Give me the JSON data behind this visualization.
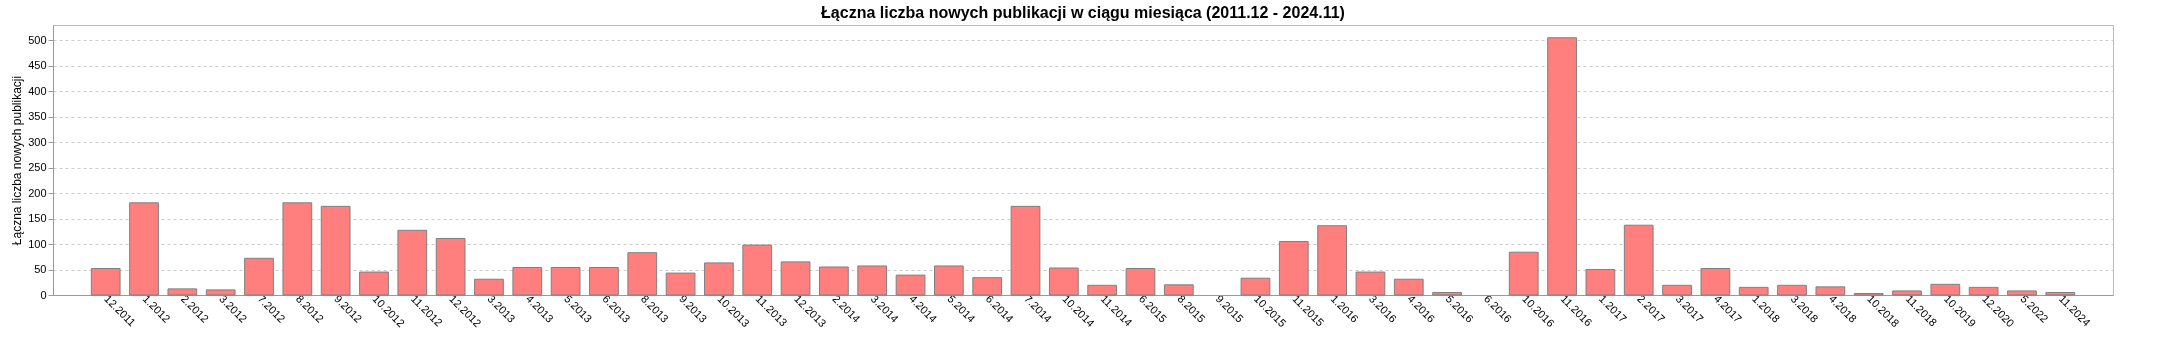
{
  "chart_data": {
    "type": "bar",
    "title": "Łączna liczba nowych publikacji w ciągu miesiąca (2011.12 - 2024.11)",
    "ylabel": "Łączna liczba nowych publikacji",
    "categories": [
      "12.2011",
      "1.2012",
      "2.2012",
      "3.2012",
      "7.2012",
      "8.2012",
      "9.2012",
      "10.2012",
      "11.2012",
      "12.2012",
      "3.2013",
      "4.2013",
      "5.2013",
      "6.2013",
      "8.2013",
      "9.2013",
      "10.2013",
      "11.2013",
      "12.2013",
      "2.2014",
      "3.2014",
      "4.2014",
      "5.2014",
      "6.2014",
      "7.2014",
      "10.2014",
      "11.2014",
      "6.2015",
      "8.2015",
      "9.2015",
      "10.2015",
      "11.2015",
      "1.2016",
      "3.2016",
      "4.2016",
      "5.2016",
      "6.2016",
      "10.2016",
      "11.2016",
      "1.2017",
      "2.2017",
      "3.2017",
      "4.2017",
      "1.2018",
      "3.2018",
      "4.2018",
      "10.2018",
      "11.2018",
      "10.2019",
      "12.2020",
      "5.2022",
      "11.2024"
    ],
    "values": [
      52,
      181,
      12,
      10,
      72,
      181,
      174,
      45,
      127,
      111,
      31,
      54,
      54,
      54,
      83,
      43,
      63,
      98,
      65,
      55,
      57,
      39,
      57,
      34,
      174,
      53,
      19,
      52,
      20,
      0,
      33,
      105,
      136,
      45,
      31,
      5,
      0,
      84,
      505,
      50,
      137,
      19,
      52,
      15,
      19,
      16,
      3,
      8,
      21,
      15,
      8,
      5
    ],
    "color": "#ff7f7f",
    "ylim": [
      0,
      530
    ],
    "yticks": [
      0,
      50,
      100,
      150,
      200,
      250,
      300,
      350,
      400,
      450,
      500
    ],
    "grid": "y"
  }
}
